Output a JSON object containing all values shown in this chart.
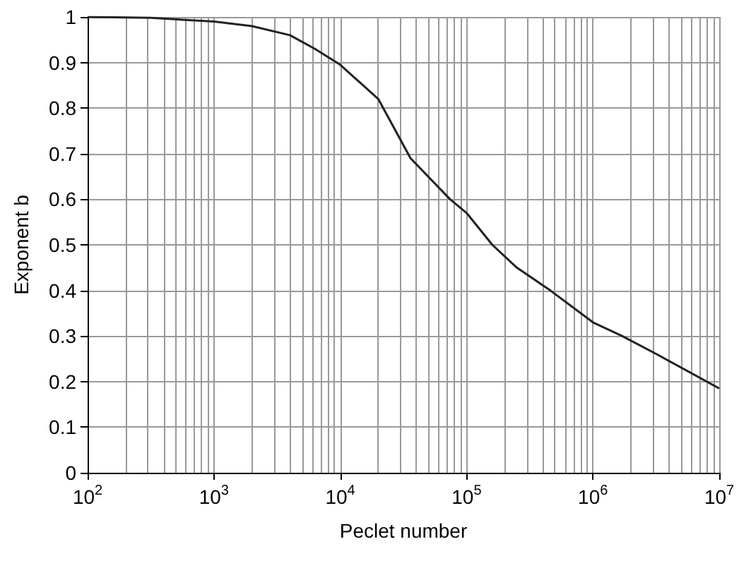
{
  "chart_data": {
    "type": "line",
    "xlabel": "Peclet number",
    "ylabel": "Exponent b",
    "log": "x",
    "grid": true,
    "marker": "none",
    "line_style": "solid",
    "xlim": [
      100,
      10000000
    ],
    "xticks": [
      {
        "value": 100,
        "label": "10$^{2}$"
      },
      {
        "value": 1000,
        "label": "10$^{3}$"
      },
      {
        "value": 10000,
        "label": "10$^{4}$"
      },
      {
        "value": 100000,
        "label": "10$^{5}$"
      },
      {
        "value": 1000000,
        "label": "10$^{6}$"
      },
      {
        "value": 10000000,
        "label": "10$^{7}$"
      }
    ],
    "ylim": [
      0,
      1
    ],
    "yticks": [
      0,
      0.1,
      0.2,
      0.3,
      0.4,
      0.5,
      0.6,
      0.7,
      0.8,
      0.9,
      1
    ],
    "series": [
      {
        "color": "#222222",
        "x": [
          100,
          316,
          1000,
          2000,
          4000,
          6300,
          10000,
          20000,
          36000,
          74000,
          100000,
          160000,
          250000,
          460000,
          1000000,
          1700000,
          3200000,
          10000000
        ],
        "values": [
          1.0,
          0.998,
          0.99,
          0.98,
          0.96,
          0.93,
          0.895,
          0.82,
          0.69,
          0.6,
          0.57,
          0.5,
          0.45,
          0.4,
          0.33,
          0.3,
          0.26,
          0.185
        ]
      }
    ]
  }
}
